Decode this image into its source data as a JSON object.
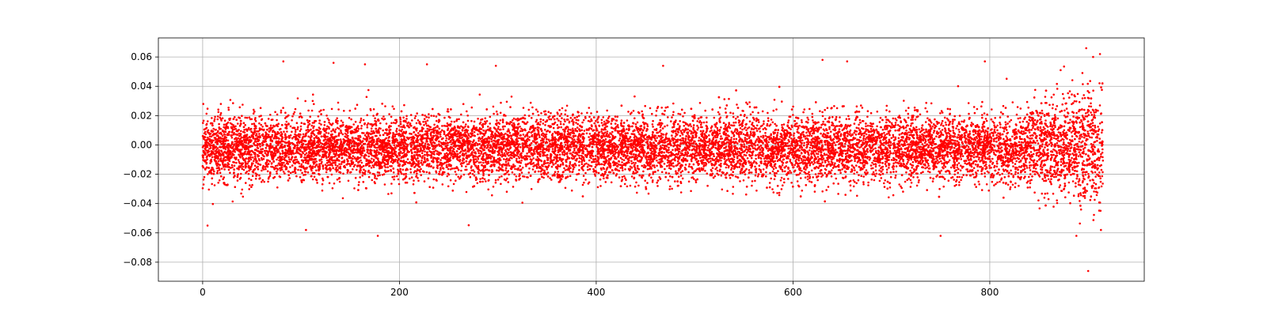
{
  "chart_data": {
    "type": "scatter",
    "title": "",
    "xlabel": "",
    "ylabel": "",
    "xlim": [
      -45,
      957
    ],
    "ylim": [
      -0.093,
      0.073
    ],
    "grid": true,
    "legend": "none",
    "colors": {
      "marker": "#ff0000",
      "grid": "#b0b0b0",
      "axes": "#000000"
    },
    "x_ticks": [
      0,
      200,
      400,
      600,
      800
    ],
    "x_tick_labels": [
      "0",
      "200",
      "400",
      "600",
      "800"
    ],
    "y_ticks": [
      0.06,
      0.04,
      0.02,
      0.0,
      -0.02,
      -0.04,
      -0.06,
      -0.08
    ],
    "y_tick_labels": [
      "0.06",
      "0.04",
      "0.02",
      "0.00",
      "−0.02",
      "−0.04",
      "−0.06",
      "−0.08"
    ],
    "series": [
      {
        "x_range": [
          0,
          915
        ],
        "y_center": -0.002,
        "typical_spread": 0.011,
        "outer_extent": [
          -0.06,
          0.057
        ],
        "tail_segment": {
          "x_range": [
            820,
            915
          ],
          "y_extent": [
            -0.086,
            0.065
          ]
        },
        "notable_points": [
          {
            "x": 5,
            "y": -0.055
          },
          {
            "x": 82,
            "y": 0.057
          },
          {
            "x": 105,
            "y": -0.058
          },
          {
            "x": 133,
            "y": 0.056
          },
          {
            "x": 165,
            "y": 0.055
          },
          {
            "x": 178,
            "y": -0.062
          },
          {
            "x": 228,
            "y": 0.055
          },
          {
            "x": 298,
            "y": 0.054
          },
          {
            "x": 468,
            "y": 0.054
          },
          {
            "x": 630,
            "y": 0.058
          },
          {
            "x": 655,
            "y": 0.057
          },
          {
            "x": 750,
            "y": -0.062
          },
          {
            "x": 795,
            "y": 0.057
          },
          {
            "x": 872,
            "y": 0.051
          },
          {
            "x": 888,
            "y": -0.062
          },
          {
            "x": 898,
            "y": 0.066
          },
          {
            "x": 900,
            "y": -0.086
          },
          {
            "x": 905,
            "y": 0.06
          },
          {
            "x": 912,
            "y": 0.062
          },
          {
            "x": 913,
            "y": -0.058
          }
        ]
      }
    ]
  }
}
